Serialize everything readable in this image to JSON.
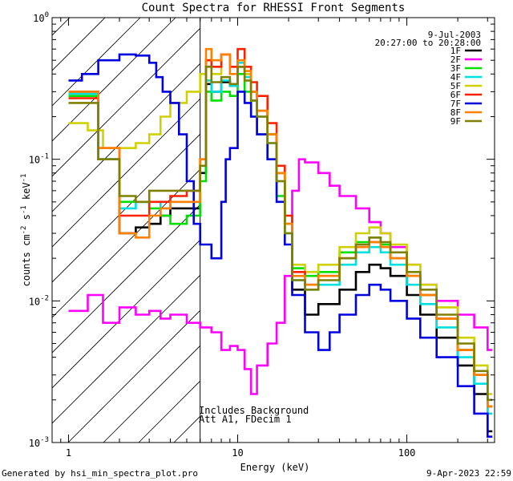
{
  "chart_data": {
    "type": "line",
    "title": "Count Spectra for RHESSI Front Segments",
    "xlabel": "Energy (keV)",
    "ylabel": "counts cm-2 s-1 keV-1",
    "ylabel_parts": [
      "counts cm",
      "-2",
      " s",
      "-1",
      " keV",
      "-1"
    ],
    "x_scale": "log",
    "y_scale": "log",
    "xlim": [
      0.8,
      330
    ],
    "ylim": [
      0.001,
      1.0
    ],
    "x_ticks": [
      {
        "value": 1,
        "label": "1"
      },
      {
        "value": 10,
        "label": "10"
      },
      {
        "value": 100,
        "label": "100"
      }
    ],
    "y_ticks": [
      {
        "value": 0.001,
        "base": "10",
        "exp": "-3"
      },
      {
        "value": 0.01,
        "base": "10",
        "exp": "-2"
      },
      {
        "value": 0.1,
        "base": "10",
        "exp": "-1"
      },
      {
        "value": 1,
        "base": "10",
        "exp": "0"
      }
    ],
    "date_label": "9-Jul-2003",
    "time_label": "20:27:00 to 20:28:00",
    "note_lines": [
      "Includes Background",
      "Att A1, FDecim  1"
    ],
    "footer_left": "Generated by hsi_min_spectra_plot.pro",
    "footer_right": "9-Apr-2023 22:59",
    "hatched_region": {
      "x_start": 0.8,
      "x_end": 6.0
    },
    "series": [
      {
        "name": "1F",
        "color": "#000000",
        "x": [
          1.0,
          1.5,
          2.0,
          2.5,
          3.0,
          3.5,
          4.0,
          5.0,
          6.0,
          6.5,
          7.0,
          8.0,
          9.0,
          10.0,
          11.0,
          12.0,
          13.0,
          15.0,
          17.0,
          19.0,
          21.0,
          25.0,
          30.0,
          40.0,
          50.0,
          60.0,
          70.0,
          80.0,
          100.0,
          120.0,
          150.0,
          200.0,
          250.0,
          300.0
        ],
        "y": [
          0.3,
          0.1,
          0.03,
          0.033,
          0.035,
          0.04,
          0.045,
          0.045,
          0.08,
          0.34,
          0.3,
          0.35,
          0.33,
          0.45,
          0.4,
          0.3,
          0.22,
          0.15,
          0.08,
          0.035,
          0.012,
          0.008,
          0.0095,
          0.012,
          0.016,
          0.018,
          0.017,
          0.015,
          0.011,
          0.008,
          0.0055,
          0.0035,
          0.0022,
          0.0012
        ]
      },
      {
        "name": "2F",
        "color": "#ff00ff",
        "x": [
          1.0,
          1.3,
          1.6,
          2.0,
          2.5,
          3.0,
          3.5,
          4.0,
          5.0,
          6.0,
          7.0,
          8.0,
          9.0,
          10.0,
          11.0,
          12.0,
          13.0,
          15.0,
          17.0,
          19.0,
          21.0,
          23.0,
          25.0,
          30.0,
          35.0,
          40.0,
          50.0,
          60.0,
          70.0,
          80.0,
          100.0,
          120.0,
          150.0,
          200.0,
          250.0,
          300.0
        ],
        "y": [
          0.0085,
          0.011,
          0.007,
          0.009,
          0.008,
          0.0085,
          0.0075,
          0.008,
          0.007,
          0.0065,
          0.006,
          0.0045,
          0.0048,
          0.0045,
          0.0033,
          0.0022,
          0.0035,
          0.005,
          0.007,
          0.015,
          0.06,
          0.1,
          0.095,
          0.08,
          0.065,
          0.055,
          0.045,
          0.036,
          0.03,
          0.024,
          0.018,
          0.013,
          0.01,
          0.008,
          0.0065,
          0.0045
        ]
      },
      {
        "name": "3F",
        "color": "#00e000",
        "x": [
          1.0,
          1.5,
          2.0,
          2.5,
          3.0,
          3.5,
          4.0,
          5.0,
          6.0,
          6.5,
          7.0,
          8.0,
          9.0,
          10.0,
          11.0,
          12.0,
          13.0,
          15.0,
          17.0,
          19.0,
          21.0,
          25.0,
          30.0,
          40.0,
          50.0,
          60.0,
          70.0,
          80.0,
          100.0,
          120.0,
          150.0,
          200.0,
          250.0,
          300.0
        ],
        "y": [
          0.28,
          0.1,
          0.05,
          0.05,
          0.045,
          0.04,
          0.035,
          0.04,
          0.07,
          0.3,
          0.26,
          0.3,
          0.28,
          0.4,
          0.3,
          0.2,
          0.15,
          0.1,
          0.055,
          0.03,
          0.017,
          0.015,
          0.016,
          0.022,
          0.026,
          0.028,
          0.025,
          0.02,
          0.015,
          0.011,
          0.0075,
          0.0045,
          0.003,
          0.0018
        ]
      },
      {
        "name": "4F",
        "color": "#00e0e0",
        "x": [
          1.0,
          1.5,
          2.0,
          2.5,
          3.0,
          3.5,
          4.0,
          5.0,
          6.0,
          6.5,
          7.0,
          8.0,
          9.0,
          10.0,
          11.0,
          12.0,
          13.0,
          15.0,
          17.0,
          19.0,
          21.0,
          25.0,
          30.0,
          40.0,
          50.0,
          60.0,
          70.0,
          80.0,
          100.0,
          120.0,
          150.0,
          200.0,
          250.0,
          300.0
        ],
        "y": [
          0.29,
          0.1,
          0.045,
          0.05,
          0.05,
          0.045,
          0.05,
          0.05,
          0.09,
          0.36,
          0.3,
          0.36,
          0.33,
          0.48,
          0.38,
          0.26,
          0.2,
          0.13,
          0.07,
          0.03,
          0.014,
          0.012,
          0.013,
          0.018,
          0.022,
          0.024,
          0.022,
          0.018,
          0.013,
          0.0095,
          0.0065,
          0.004,
          0.0026,
          0.0016
        ]
      },
      {
        "name": "5F",
        "color": "#d0d000",
        "x": [
          1.0,
          1.3,
          1.6,
          2.0,
          2.5,
          3.0,
          3.5,
          4.0,
          5.0,
          6.0,
          6.5,
          7.0,
          8.0,
          9.0,
          10.0,
          11.0,
          12.0,
          13.0,
          15.0,
          17.0,
          19.0,
          21.0,
          25.0,
          30.0,
          40.0,
          50.0,
          60.0,
          70.0,
          80.0,
          100.0,
          120.0,
          150.0,
          200.0,
          250.0,
          300.0
        ],
        "y": [
          0.18,
          0.16,
          0.12,
          0.12,
          0.13,
          0.15,
          0.2,
          0.25,
          0.3,
          0.4,
          0.5,
          0.4,
          0.55,
          0.45,
          0.5,
          0.4,
          0.3,
          0.22,
          0.15,
          0.08,
          0.035,
          0.018,
          0.016,
          0.018,
          0.024,
          0.03,
          0.033,
          0.03,
          0.025,
          0.018,
          0.013,
          0.009,
          0.0055,
          0.0035,
          0.0022
        ]
      },
      {
        "name": "6F",
        "color": "#ff2000",
        "x": [
          1.0,
          1.5,
          2.0,
          2.5,
          3.0,
          3.5,
          4.0,
          5.0,
          6.0,
          6.5,
          7.0,
          8.0,
          9.0,
          10.0,
          11.0,
          12.0,
          13.0,
          15.0,
          17.0,
          19.0,
          21.0,
          25.0,
          30.0,
          40.0,
          50.0,
          60.0,
          70.0,
          80.0,
          100.0,
          120.0,
          150.0,
          200.0,
          250.0,
          300.0
        ],
        "y": [
          0.27,
          0.12,
          0.04,
          0.04,
          0.05,
          0.05,
          0.055,
          0.06,
          0.1,
          0.5,
          0.45,
          0.55,
          0.45,
          0.6,
          0.45,
          0.35,
          0.28,
          0.18,
          0.09,
          0.04,
          0.016,
          0.013,
          0.015,
          0.02,
          0.024,
          0.026,
          0.024,
          0.02,
          0.015,
          0.011,
          0.0075,
          0.0045,
          0.003,
          0.0018
        ]
      },
      {
        "name": "7F",
        "color": "#0000e0",
        "x": [
          1.0,
          1.2,
          1.5,
          2.0,
          2.5,
          3.0,
          3.3,
          3.6,
          4.0,
          4.5,
          5.0,
          5.5,
          6.0,
          7.0,
          8.0,
          8.5,
          9.0,
          10.0,
          11.0,
          12.0,
          13.0,
          15.0,
          17.0,
          19.0,
          21.0,
          25.0,
          30.0,
          35.0,
          40.0,
          50.0,
          60.0,
          70.0,
          80.0,
          100.0,
          120.0,
          150.0,
          200.0,
          250.0,
          300.0
        ],
        "y": [
          0.36,
          0.4,
          0.5,
          0.55,
          0.54,
          0.48,
          0.38,
          0.3,
          0.25,
          0.15,
          0.07,
          0.035,
          0.025,
          0.02,
          0.05,
          0.1,
          0.12,
          0.3,
          0.25,
          0.2,
          0.15,
          0.1,
          0.05,
          0.025,
          0.011,
          0.006,
          0.0045,
          0.006,
          0.008,
          0.011,
          0.013,
          0.012,
          0.01,
          0.0075,
          0.0055,
          0.004,
          0.0025,
          0.0016,
          0.0011
        ]
      },
      {
        "name": "8F",
        "color": "#ff8000",
        "x": [
          1.0,
          1.5,
          2.0,
          2.5,
          3.0,
          3.5,
          4.0,
          5.0,
          6.0,
          6.5,
          7.0,
          8.0,
          9.0,
          10.0,
          11.0,
          12.0,
          13.0,
          15.0,
          17.0,
          19.0,
          21.0,
          25.0,
          30.0,
          40.0,
          50.0,
          60.0,
          70.0,
          80.0,
          100.0,
          120.0,
          150.0,
          200.0,
          250.0,
          300.0
        ],
        "y": [
          0.3,
          0.12,
          0.03,
          0.028,
          0.04,
          0.045,
          0.05,
          0.05,
          0.1,
          0.6,
          0.5,
          0.55,
          0.4,
          0.5,
          0.42,
          0.3,
          0.22,
          0.15,
          0.08,
          0.035,
          0.015,
          0.013,
          0.015,
          0.02,
          0.024,
          0.026,
          0.024,
          0.02,
          0.015,
          0.011,
          0.0075,
          0.0045,
          0.003,
          0.0018
        ]
      },
      {
        "name": "9F",
        "color": "#808000",
        "x": [
          1.0,
          1.5,
          2.0,
          2.5,
          3.0,
          3.5,
          4.0,
          5.0,
          6.0,
          6.5,
          7.0,
          8.0,
          9.0,
          10.0,
          11.0,
          12.0,
          13.0,
          15.0,
          17.0,
          19.0,
          21.0,
          25.0,
          30.0,
          40.0,
          50.0,
          60.0,
          70.0,
          80.0,
          100.0,
          120.0,
          150.0,
          200.0,
          250.0,
          300.0
        ],
        "y": [
          0.25,
          0.1,
          0.055,
          0.05,
          0.06,
          0.06,
          0.06,
          0.06,
          0.09,
          0.45,
          0.35,
          0.38,
          0.34,
          0.45,
          0.36,
          0.26,
          0.2,
          0.13,
          0.07,
          0.03,
          0.014,
          0.012,
          0.014,
          0.02,
          0.025,
          0.028,
          0.026,
          0.022,
          0.016,
          0.012,
          0.008,
          0.005,
          0.0032,
          0.002
        ]
      }
    ]
  }
}
